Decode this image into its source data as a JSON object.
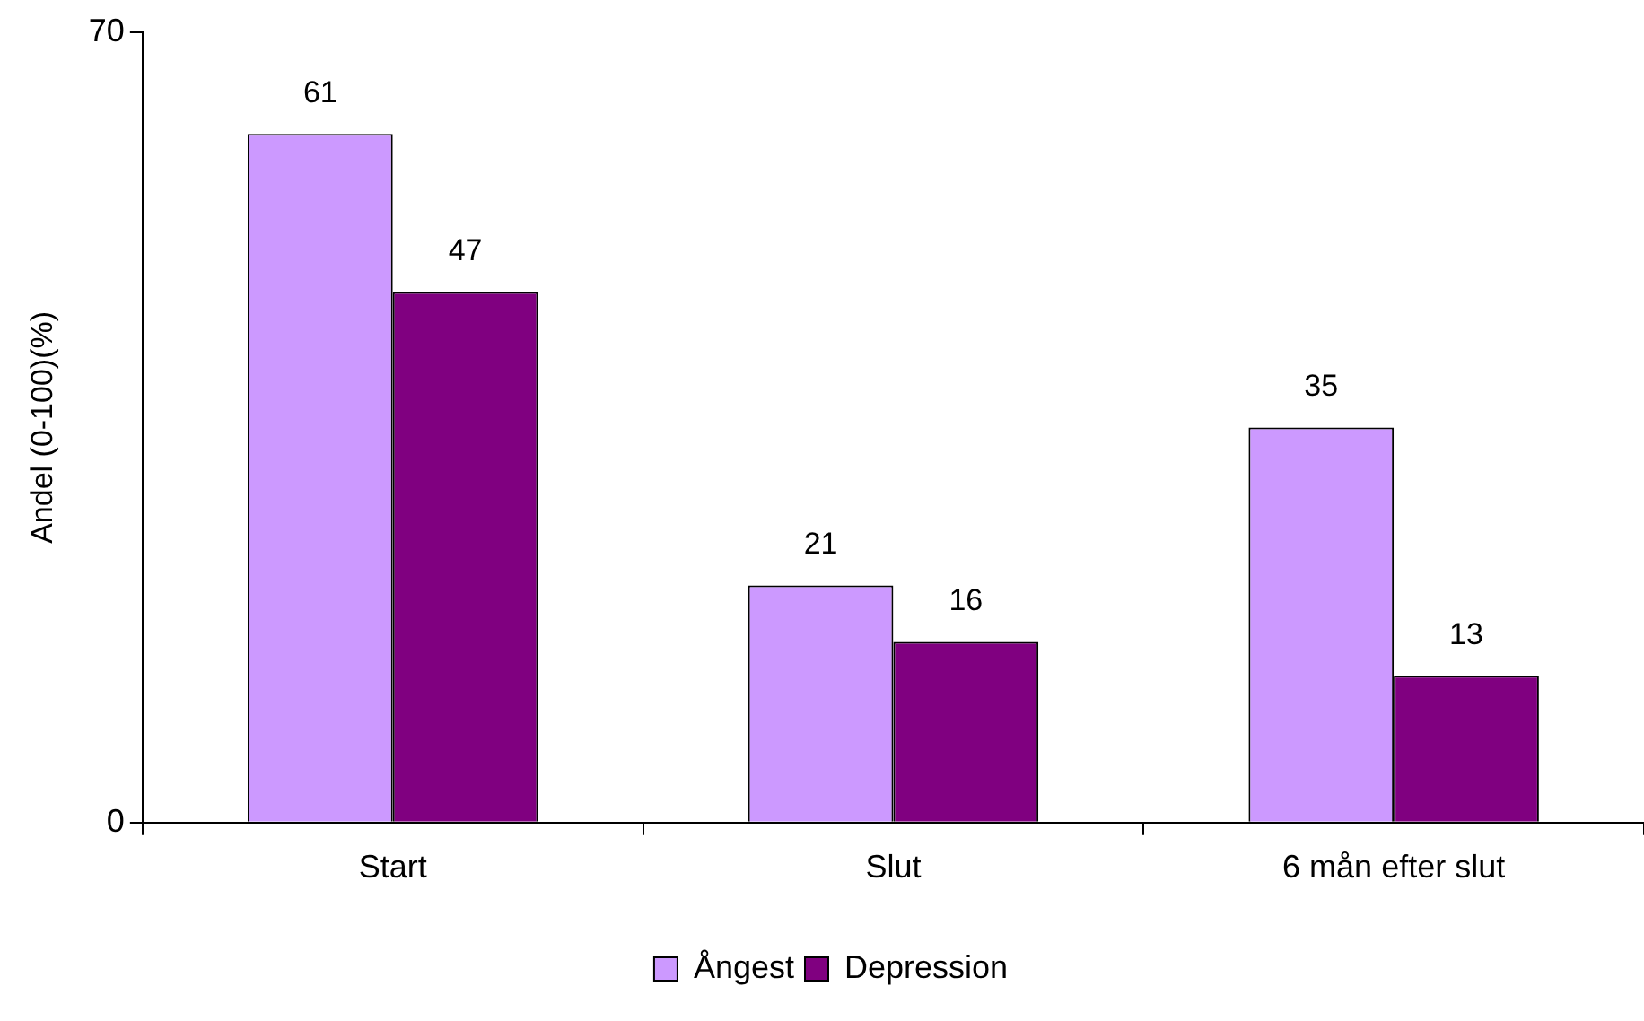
{
  "chart_data": {
    "type": "bar",
    "ylabel": "Andel (0-100)(%)",
    "categories": [
      "Start",
      "Slut",
      "6 mån efter slut"
    ],
    "series": [
      {
        "name": "Ångest",
        "color": "#cc99ff",
        "values": [
          61,
          21,
          35
        ]
      },
      {
        "name": "Depression",
        "color": "#800080",
        "values": [
          47,
          16,
          13
        ]
      }
    ],
    "ylim": [
      0,
      70
    ],
    "yticks": [
      0,
      70
    ],
    "grid": false,
    "legend": "bottom",
    "data_labels": true
  }
}
